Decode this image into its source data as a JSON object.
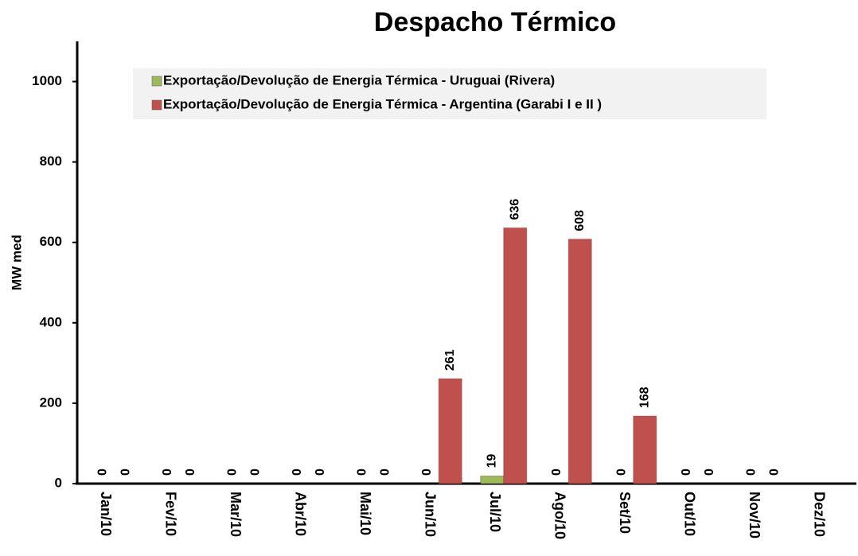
{
  "chart_data": {
    "type": "bar",
    "title": "Despacho Térmico",
    "y_label": "MW med",
    "categories": [
      "Jan/10",
      "Fev/10",
      "Mar/10",
      "Abr/10",
      "Mai/10",
      "Jun/10",
      "Jul/10",
      "Ago/10",
      "Set/10",
      "Out/10",
      "Nov/10",
      "Dez/10"
    ],
    "series": [
      {
        "name": "Exportação/Devolução de Energia Térmica - Uruguai (Rivera)",
        "color": "#9bbb59",
        "values": [
          0,
          0,
          0,
          0,
          0,
          0,
          19,
          0,
          0,
          0,
          0,
          null
        ]
      },
      {
        "name": "Exportação/Devolução de Energia Térmica - Argentina (Garabi I e II )",
        "color": "#c0504d",
        "values": [
          0,
          0,
          0,
          0,
          0,
          261,
          636,
          608,
          168,
          0,
          0,
          null
        ]
      }
    ],
    "ylim": [
      0,
      1100
    ],
    "yticks": [
      0,
      200,
      400,
      600,
      800,
      1000
    ],
    "grid": false,
    "legend": "top"
  }
}
